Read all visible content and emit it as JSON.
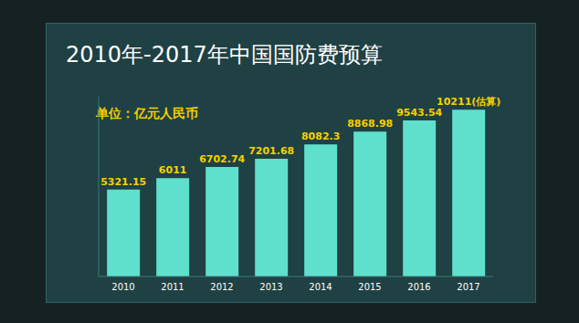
{
  "chart_data": {
    "type": "bar",
    "title": "2010年-2017年中国国防费预算",
    "subtitle": "单位：亿元人民币",
    "categories": [
      "2010",
      "2011",
      "2012",
      "2013",
      "2014",
      "2015",
      "2016",
      "2017"
    ],
    "values": [
      5321.15,
      6011,
      6702.74,
      7201.68,
      8082.3,
      8868.98,
      9543.54,
      10211
    ],
    "value_labels": [
      "5321.15",
      "6011",
      "6702.74",
      "7201.68",
      "8082.3",
      "8868.98",
      "9543.54",
      "10211(估算)"
    ],
    "color": "#5fe0cc",
    "ylim": [
      0,
      11000
    ],
    "data_labels": true,
    "tick_labels": "x",
    "grid": false
  }
}
